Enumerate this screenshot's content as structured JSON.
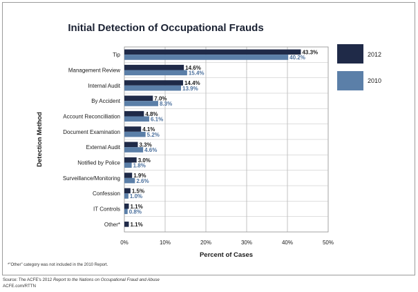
{
  "title": "Initial Detection of Occupational Frauds",
  "footnote": "*\"Other\" category was not included in the 2010 Report.",
  "source": {
    "prefix": "Source: The ACFE's 2012 ",
    "report": "Report to the Nations on Occupational Fraud and Abuse",
    "url": "ACFE.com/RTTN"
  },
  "colors": {
    "series2012": "#1f2a48",
    "series2010": "#5b7fa8",
    "label2010": "#4a6f9c"
  },
  "chart_data": {
    "type": "bar",
    "orientation": "horizontal",
    "title": "Initial Detection of Occupational Frauds",
    "xlabel": "Percent of Cases",
    "ylabel": "Detection Method",
    "xlim": [
      0,
      50
    ],
    "xticks": [
      "0%",
      "10%",
      "20%",
      "30%",
      "40%",
      "50%"
    ],
    "grid": true,
    "legend": "right",
    "categories": [
      "Tip",
      "Management Review",
      "Internal Audit",
      "By Accident",
      "Account Reconcilliation",
      "Document Examination",
      "External Audit",
      "Notified by Police",
      "Surveillance/Monitoring",
      "Confession",
      "IT Controls",
      "Other*"
    ],
    "series": [
      {
        "name": "2012",
        "values": [
          43.3,
          14.6,
          14.4,
          7.0,
          4.8,
          4.1,
          3.3,
          3.0,
          1.9,
          1.5,
          1.1,
          1.1
        ],
        "labels": [
          "43.3%",
          "14.6%",
          "14.4%",
          "7.0%",
          "4.8%",
          "4.1%",
          "3.3%",
          "3.0%",
          "1.9%",
          "1.5%",
          "1.1%",
          "1.1%"
        ]
      },
      {
        "name": "2010",
        "values": [
          40.2,
          15.4,
          13.9,
          8.3,
          6.1,
          5.2,
          4.6,
          1.8,
          2.6,
          1.0,
          0.8,
          null
        ],
        "labels": [
          "40.2%",
          "15.4%",
          "13.9%",
          "8.3%",
          "6.1%",
          "5.2%",
          "4.6%",
          "1.8%",
          "2.6%",
          "1.0%",
          "0.8%",
          ""
        ]
      }
    ]
  }
}
